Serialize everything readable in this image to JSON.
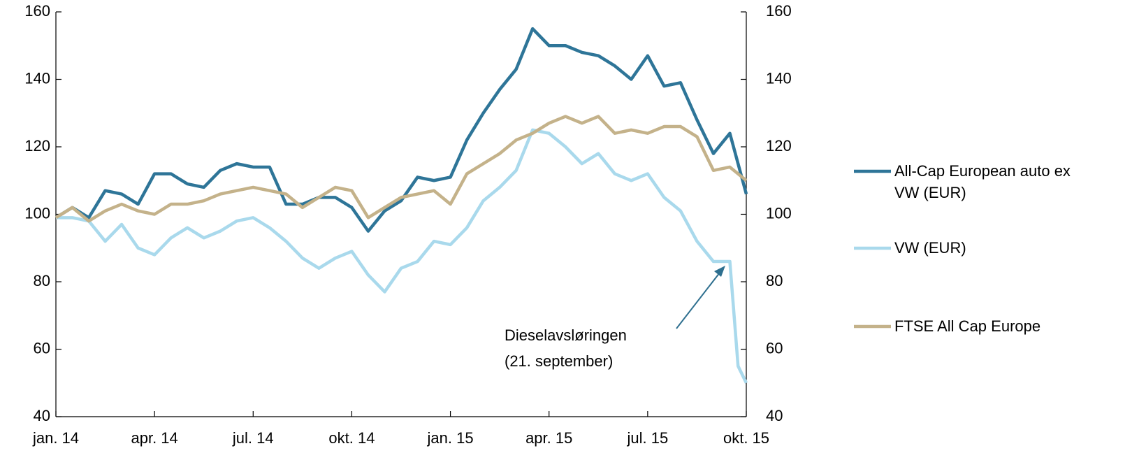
{
  "chart_data": {
    "type": "line",
    "annotation": [
      "Dieselavsløringen",
      "(21. september)"
    ],
    "x": [
      0,
      1,
      2,
      3,
      4,
      5,
      6,
      7,
      8,
      9,
      10,
      11,
      12,
      13,
      14,
      15,
      16,
      17,
      18,
      19,
      20,
      21,
      22,
      23,
      24,
      25,
      26,
      27,
      28,
      29,
      30,
      31,
      32,
      33,
      34,
      35,
      36,
      37,
      38,
      39,
      40,
      41,
      41.5,
      42
    ],
    "xlim": [
      0,
      42
    ],
    "xticks": [
      {
        "value": 0,
        "label": "jan. 14"
      },
      {
        "value": 6,
        "label": "apr. 14"
      },
      {
        "value": 12,
        "label": "jul. 14"
      },
      {
        "value": 18,
        "label": "okt. 14"
      },
      {
        "value": 24,
        "label": "jan. 15"
      },
      {
        "value": 30,
        "label": "apr. 15"
      },
      {
        "value": 36,
        "label": "jul. 15"
      },
      {
        "value": 42,
        "label": "okt. 15"
      }
    ],
    "ylim": [
      40,
      160
    ],
    "yticks": [
      40,
      60,
      80,
      100,
      120,
      140,
      160
    ],
    "y2lim": [
      40,
      160
    ],
    "y2ticks": [
      40,
      60,
      80,
      100,
      120,
      140,
      160
    ],
    "series": [
      {
        "name": "All-Cap European auto ex VW (EUR)",
        "color": "#2e7598",
        "values": [
          99,
          102,
          99,
          107,
          106,
          103,
          112,
          112,
          109,
          108,
          113,
          115,
          114,
          114,
          103,
          103,
          105,
          105,
          102,
          95,
          101,
          104,
          111,
          110,
          111,
          122,
          130,
          137,
          143,
          155,
          150,
          150,
          148,
          147,
          144,
          140,
          147,
          138,
          139,
          128,
          118,
          124,
          115,
          106
        ]
      },
      {
        "name": "VW (EUR)",
        "color": "#a9d9ec",
        "values": [
          99,
          99,
          98,
          92,
          97,
          90,
          88,
          93,
          96,
          93,
          95,
          98,
          99,
          96,
          92,
          87,
          84,
          87,
          89,
          82,
          77,
          84,
          86,
          92,
          91,
          96,
          104,
          108,
          113,
          125,
          124,
          120,
          115,
          118,
          112,
          110,
          112,
          105,
          101,
          92,
          86,
          86,
          55,
          50
        ]
      },
      {
        "name": "FTSE All Cap Europe",
        "color": "#c4b28a",
        "values": [
          99,
          102,
          98,
          101,
          103,
          101,
          100,
          103,
          103,
          104,
          106,
          107,
          108,
          107,
          106,
          102,
          105,
          108,
          107,
          99,
          102,
          105,
          106,
          107,
          103,
          112,
          115,
          118,
          122,
          124,
          127,
          129,
          127,
          129,
          124,
          125,
          124,
          126,
          126,
          123,
          113,
          114,
          112,
          110
        ]
      }
    ]
  }
}
